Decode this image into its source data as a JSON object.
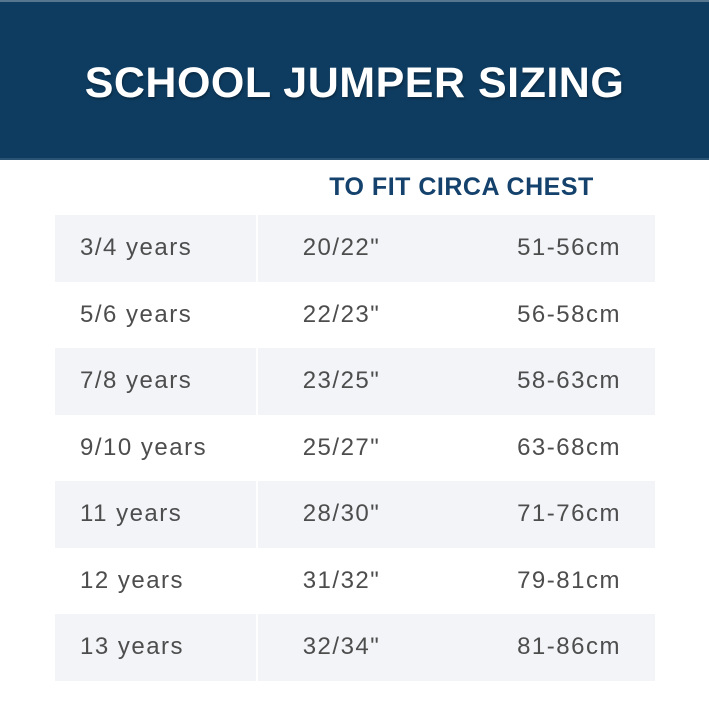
{
  "banner": {
    "title": "SCHOOL JUMPER SIZING"
  },
  "chart_data": {
    "type": "table",
    "title": "SCHOOL JUMPER SIZING",
    "group_header": "TO FIT CIRCA CHEST",
    "columns": [
      "age",
      "chest_inches",
      "chest_cm"
    ],
    "rows": [
      [
        "3/4 years",
        "20/22\"",
        "51-56cm"
      ],
      [
        "5/6 years",
        "22/23\"",
        "56-58cm"
      ],
      [
        "7/8 years",
        "23/25\"",
        "58-63cm"
      ],
      [
        "9/10 years",
        "25/27\"",
        "63-68cm"
      ],
      [
        "11 years",
        "28/30\"",
        "71-76cm"
      ],
      [
        "12 years",
        "31/32\"",
        "79-81cm"
      ],
      [
        "13 years",
        "32/34\"",
        "81-86cm"
      ]
    ]
  },
  "colors": {
    "banner_bg": "#0e3c60",
    "banner_text": "#ffffff",
    "group_header_text": "#14426c",
    "row_alt_bg": "#f2f4f8",
    "row_text": "#4d4d4d"
  }
}
